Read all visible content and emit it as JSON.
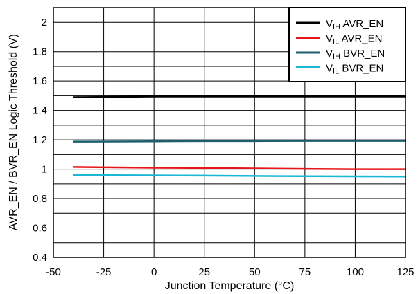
{
  "chart_data": {
    "type": "line",
    "xlabel": "Junction Temperature (°C)",
    "ylabel": "AVR_EN / BVR_EN Logic Threshold (V)",
    "xlim": [
      -50,
      125
    ],
    "ylim": [
      0.4,
      2.1
    ],
    "x_ticks": [
      "-50",
      "-25",
      "0",
      "25",
      "50",
      "75",
      "100",
      "125"
    ],
    "y_ticks": [
      "0.4",
      "0.6",
      "0.8",
      "1",
      "1.2",
      "1.4",
      "1.6",
      "1.8",
      "2"
    ],
    "grid": true,
    "legend_position": "top-right",
    "series": [
      {
        "label_main": "V",
        "label_sub": "IH",
        "label_rest": " AVR_EN",
        "color": "#000000",
        "x": [
          -40,
          0,
          25,
          50,
          75,
          100,
          125
        ],
        "values": [
          1.49,
          1.495,
          1.495,
          1.495,
          1.495,
          1.495,
          1.495
        ]
      },
      {
        "label_main": "V",
        "label_sub": "IL",
        "label_rest": " AVR_EN",
        "color": "#e8161b",
        "x": [
          -40,
          0,
          25,
          50,
          75,
          100,
          125
        ],
        "values": [
          1.015,
          1.01,
          1.008,
          1.005,
          1.002,
          1.0,
          1.0
        ]
      },
      {
        "label_main": "V",
        "label_sub": "IH",
        "label_rest": " BVR_EN",
        "color": "#1b5e6e",
        "x": [
          -40,
          0,
          25,
          50,
          75,
          100,
          125
        ],
        "values": [
          1.188,
          1.19,
          1.192,
          1.192,
          1.193,
          1.193,
          1.193
        ]
      },
      {
        "label_main": "V",
        "label_sub": "IL",
        "label_rest": " BVR_EN",
        "color": "#1ab6d6",
        "x": [
          -40,
          0,
          25,
          50,
          75,
          100,
          125
        ],
        "values": [
          0.96,
          0.958,
          0.956,
          0.954,
          0.952,
          0.951,
          0.95
        ]
      }
    ]
  }
}
